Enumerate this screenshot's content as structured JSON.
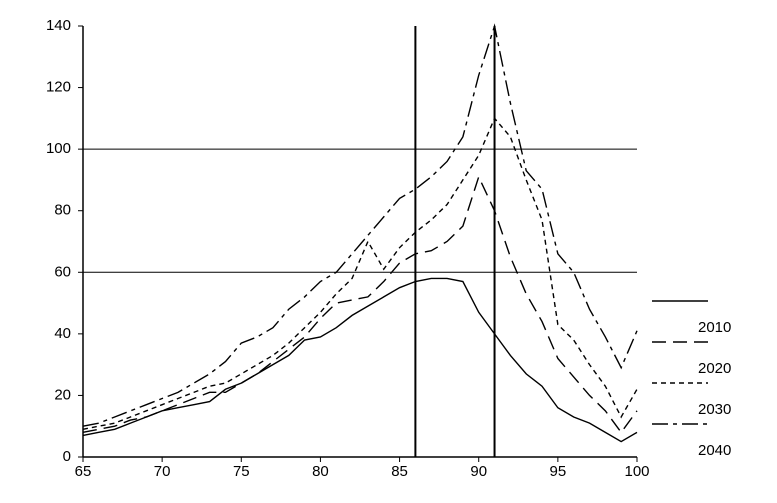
{
  "chart_data": {
    "type": "line",
    "x": [
      65,
      66,
      67,
      68,
      69,
      70,
      71,
      72,
      73,
      74,
      75,
      76,
      77,
      78,
      79,
      80,
      81,
      82,
      83,
      84,
      85,
      86,
      87,
      88,
      89,
      90,
      91,
      92,
      93,
      94,
      95,
      96,
      97,
      98,
      99,
      100
    ],
    "series": [
      {
        "name": "2010",
        "color": "#000000",
        "dash": "solid",
        "values": [
          7,
          8,
          9,
          11,
          13,
          15,
          16,
          17,
          18,
          22,
          24,
          27,
          30,
          33,
          38,
          39,
          42,
          46,
          49,
          52,
          55,
          57,
          58,
          58,
          57,
          47,
          40,
          33,
          27,
          23,
          16,
          13,
          11,
          8,
          5,
          8
        ]
      },
      {
        "name": "2020",
        "color": "#000000",
        "dash": "long",
        "values": [
          8,
          9,
          10,
          12,
          13,
          15,
          17,
          19,
          21,
          21,
          24,
          27,
          31,
          35,
          39,
          45,
          50,
          51,
          52,
          57,
          63,
          66,
          67,
          70,
          75,
          91,
          80,
          65,
          53,
          44,
          32,
          26,
          20,
          15,
          8,
          15
        ]
      },
      {
        "name": "2030",
        "color": "#000000",
        "dash": "short",
        "values": [
          9,
          10,
          11,
          13,
          15,
          17,
          19,
          21,
          23,
          24,
          27,
          30,
          33,
          37,
          42,
          47,
          53,
          58,
          70,
          61,
          68,
          73,
          77,
          82,
          90,
          98,
          110,
          104,
          90,
          77,
          43,
          38,
          30,
          23,
          13,
          22
        ]
      },
      {
        "name": "2040",
        "color": "#000000",
        "dash": "long-short",
        "values": [
          10,
          11,
          13,
          15,
          17,
          19,
          21,
          24,
          27,
          31,
          37,
          39,
          42,
          48,
          52,
          57,
          60,
          66,
          72,
          78,
          84,
          87,
          91,
          96,
          104,
          124,
          140,
          115,
          93,
          87,
          66,
          60,
          48,
          39,
          29,
          41
        ]
      }
    ],
    "xlim": [
      65,
      100
    ],
    "xticks": [
      65,
      70,
      75,
      80,
      85,
      90,
      95,
      100
    ],
    "ylim": [
      0,
      140
    ],
    "yticks": [
      0,
      20,
      40,
      60,
      80,
      100,
      120,
      140
    ],
    "grid_y": [
      60,
      100
    ],
    "reference_x": [
      86,
      91
    ],
    "legend": "right"
  }
}
